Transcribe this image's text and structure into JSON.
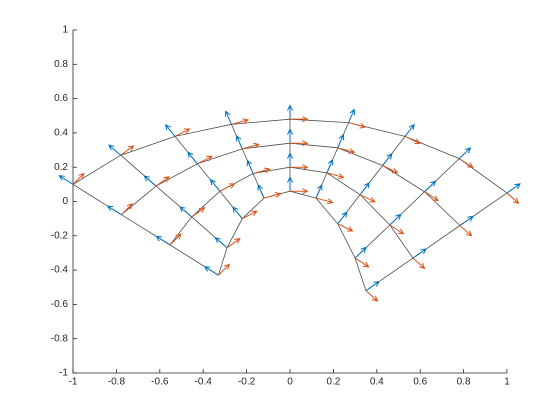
{
  "chart_data": {
    "type": "quiver",
    "xlim": [
      -1,
      1
    ],
    "xticks": [
      -1,
      -0.8,
      -0.6,
      -0.4,
      -0.2,
      0,
      0.2,
      0.4,
      0.6,
      0.8,
      1
    ],
    "ylim": [
      -1,
      1
    ],
    "yticks": [
      -1,
      -0.8,
      -0.6,
      -0.4,
      -0.2,
      0,
      0.2,
      0.4,
      0.6,
      0.8,
      1
    ],
    "mesh_color": "#4d4d4d",
    "x": [
      [
        -0.33,
        -0.553,
        -0.777,
        -1
      ],
      [
        -0.29,
        -0.453,
        -0.617,
        -0.78
      ],
      [
        -0.22,
        -0.323,
        -0.427,
        -0.53
      ],
      [
        -0.12,
        -0.17,
        -0.22,
        -0.27
      ],
      [
        0,
        0,
        0,
        0
      ],
      [
        0.12,
        0.17,
        0.22,
        0.27
      ],
      [
        0.22,
        0.323,
        0.427,
        0.53
      ],
      [
        0.3,
        0.46,
        0.62,
        0.78
      ],
      [
        0.35,
        0.567,
        0.783,
        1
      ]
    ],
    "y": [
      [
        -0.43,
        -0.253,
        -0.077,
        0.1
      ],
      [
        -0.27,
        -0.09,
        0.09,
        0.27
      ],
      [
        -0.1,
        0.06,
        0.22,
        0.38
      ],
      [
        0.02,
        0.163,
        0.307,
        0.45
      ],
      [
        0.06,
        0.2,
        0.34,
        0.48
      ],
      [
        0.02,
        0.167,
        0.313,
        0.46
      ],
      [
        -0.13,
        0.04,
        0.21,
        0.38
      ],
      [
        -0.33,
        -0.137,
        0.057,
        0.25
      ],
      [
        -0.52,
        -0.33,
        -0.14,
        0.05
      ]
    ],
    "series": [
      {
        "color": "#0072bd",
        "u": [
          [
            -0.063,
            -0.063,
            -0.063,
            -0.063
          ],
          [
            -0.054,
            -0.054,
            -0.054,
            -0.054
          ],
          [
            -0.043,
            -0.043,
            -0.043,
            -0.043
          ],
          [
            -0.026,
            -0.026,
            -0.026,
            -0.026
          ],
          [
            0,
            0,
            0,
            0
          ],
          [
            0.026,
            0.026,
            0.026,
            0.026
          ],
          [
            0.042,
            0.042,
            0.042,
            0.042
          ],
          [
            0.051,
            0.051,
            0.051,
            0.051
          ],
          [
            0.06,
            0.06,
            0.06,
            0.06
          ]
        ],
        "v": [
          [
            0.05,
            0.05,
            0.05,
            0.05
          ],
          [
            0.059,
            0.059,
            0.059,
            0.059
          ],
          [
            0.067,
            0.067,
            0.067,
            0.067
          ],
          [
            0.076,
            0.076,
            0.076,
            0.076
          ],
          [
            0.08,
            0.08,
            0.08,
            0.08
          ],
          [
            0.076,
            0.076,
            0.076,
            0.076
          ],
          [
            0.068,
            0.068,
            0.068,
            0.068
          ],
          [
            0.062,
            0.062,
            0.062,
            0.062
          ],
          [
            0.053,
            0.053,
            0.053,
            0.053
          ]
        ]
      },
      {
        "color": "#d95319",
        "u": [
          [
            0.05,
            0.05,
            0.05,
            0.05
          ],
          [
            0.059,
            0.059,
            0.059,
            0.059
          ],
          [
            0.067,
            0.067,
            0.067,
            0.067
          ],
          [
            0.076,
            0.076,
            0.076,
            0.076
          ],
          [
            0.08,
            0.08,
            0.08,
            0.08
          ],
          [
            0.076,
            0.076,
            0.076,
            0.076
          ],
          [
            0.068,
            0.068,
            0.068,
            0.068
          ],
          [
            0.062,
            0.062,
            0.062,
            0.062
          ],
          [
            0.053,
            0.053,
            0.053,
            0.053
          ]
        ],
        "v": [
          [
            0.063,
            0.063,
            0.063,
            0.063
          ],
          [
            0.054,
            0.054,
            0.054,
            0.054
          ],
          [
            0.043,
            0.043,
            0.043,
            0.043
          ],
          [
            0.026,
            0.026,
            0.026,
            0.026
          ],
          [
            0,
            0,
            0,
            0
          ],
          [
            -0.026,
            -0.026,
            -0.026,
            -0.026
          ],
          [
            -0.042,
            -0.042,
            -0.042,
            -0.042
          ],
          [
            -0.051,
            -0.051,
            -0.051,
            -0.051
          ],
          [
            -0.06,
            -0.06,
            -0.06,
            -0.06
          ]
        ]
      }
    ]
  }
}
